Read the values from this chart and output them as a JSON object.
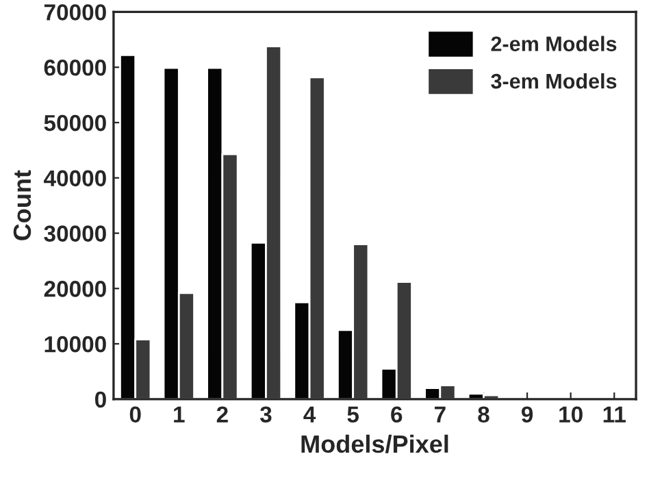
{
  "chart_data": {
    "type": "bar",
    "xlabel": "Models/Pixel",
    "ylabel": "Count",
    "categories": [
      "0",
      "1",
      "2",
      "3",
      "4",
      "5",
      "6",
      "7",
      "8",
      "9",
      "10",
      "11"
    ],
    "series": [
      {
        "name": "2-em Models",
        "color": "#050505",
        "values": [
          62200,
          59900,
          59900,
          28300,
          17500,
          12500,
          5500,
          2000,
          1000,
          null,
          null,
          null
        ]
      },
      {
        "name": "3-em Models",
        "color": "#3a3a3a",
        "values": [
          10800,
          19200,
          44300,
          63800,
          58200,
          28000,
          21200,
          2500,
          700,
          null,
          null,
          null
        ]
      }
    ],
    "ylim": [
      0,
      70000
    ],
    "yticks": [
      0,
      10000,
      20000,
      30000,
      40000,
      50000,
      60000,
      70000
    ],
    "grid": false,
    "legend": "top right"
  }
}
